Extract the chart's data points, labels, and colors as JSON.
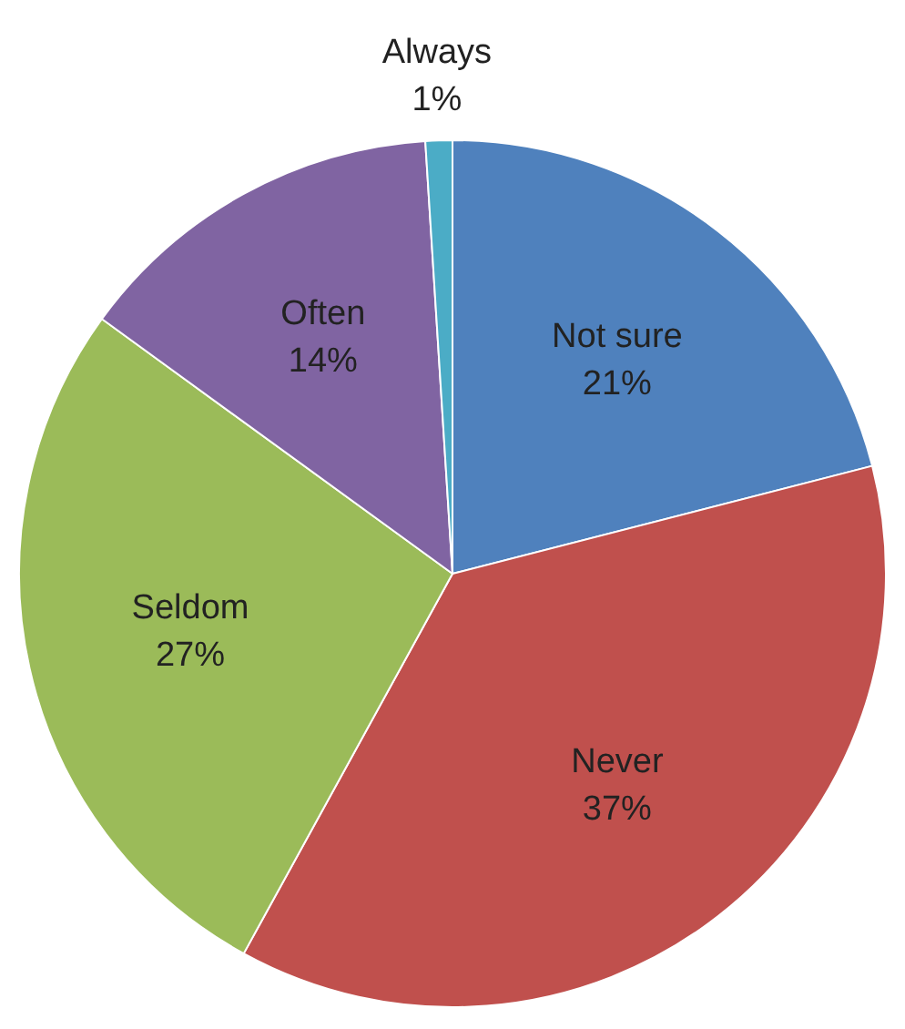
{
  "chart_data": {
    "type": "pie",
    "categories": [
      "Not sure",
      "Never",
      "Seldom",
      "Often",
      "Always"
    ],
    "values": [
      21,
      37,
      27,
      14,
      1
    ],
    "colors": [
      "#4f81bd",
      "#c0504d",
      "#9bbb59",
      "#8064a2",
      "#4bacc6"
    ],
    "value_labels": [
      "21%",
      "37%",
      "27%",
      "14%",
      "1%"
    ],
    "legend": false
  }
}
